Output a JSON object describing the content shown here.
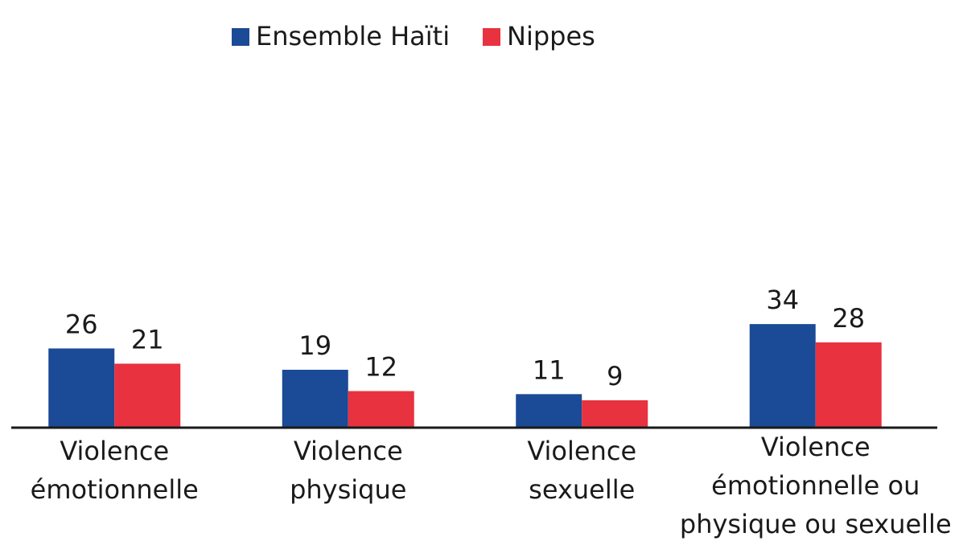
{
  "chart_data": {
    "type": "bar",
    "categories": [
      [
        "Violence",
        "émotionnelle"
      ],
      [
        "Violence",
        "physique"
      ],
      [
        "Violence",
        "sexuelle"
      ],
      [
        "Violence",
        "émotionnelle ou",
        "physique ou sexuelle"
      ]
    ],
    "series": [
      {
        "name": "Ensemble Haïti",
        "color": "#1b4a96",
        "values": [
          26,
          19,
          11,
          34
        ]
      },
      {
        "name": "Nippes",
        "color": "#e8323f",
        "values": [
          21,
          12,
          9,
          28
        ]
      }
    ],
    "ylim": [
      0,
      100
    ],
    "legend": "top"
  }
}
